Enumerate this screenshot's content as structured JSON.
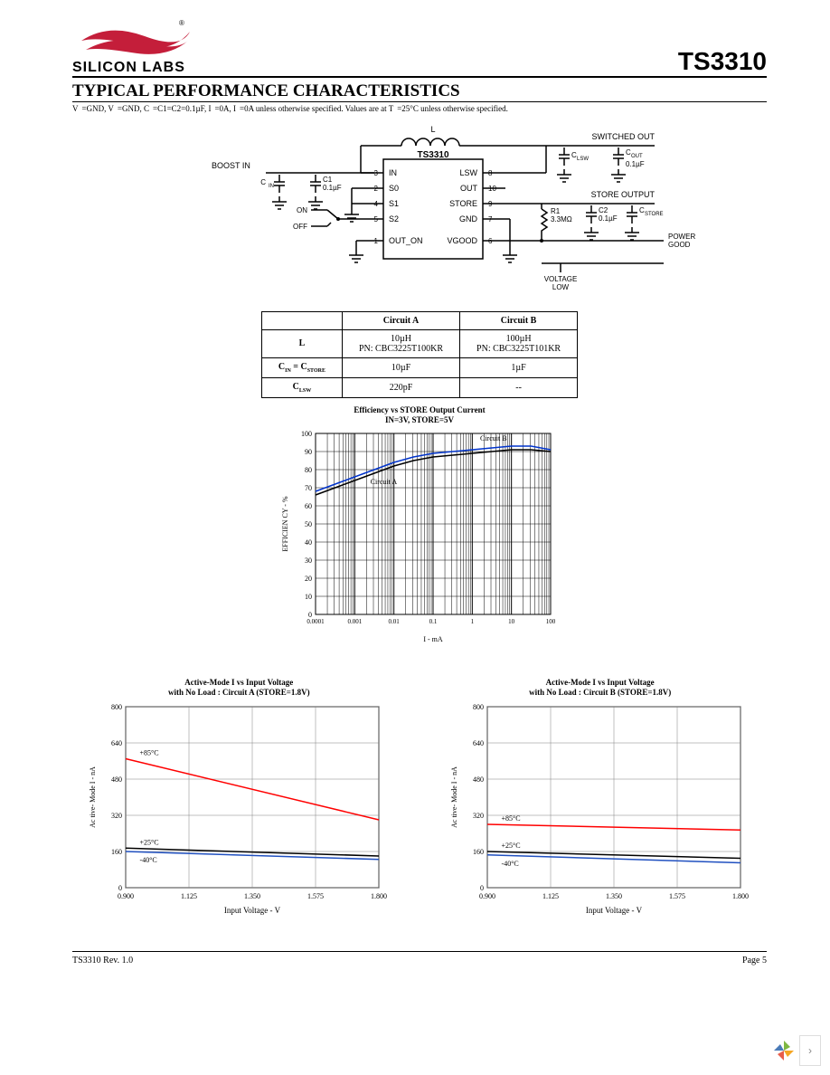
{
  "header": {
    "brand_line1": "SILICON LABS",
    "part_number": "TS3310"
  },
  "section": {
    "title": "TYPICAL PERFORMANCE CHARACTERISTICS",
    "note_a": "V",
    "note_b": " =GND, V",
    "note_c": " =GND, C",
    "note_d": " =C1=C2=0.1µF, I",
    "note_e": " =0A, I",
    "note_f": " =0A unless otherwise specified. Values are at T",
    "note_g": " =25°C unless otherwise specified."
  },
  "circuit": {
    "label_L": "L",
    "label_switched_out": "SWITCHED OUT",
    "label_boost_in": "BOOST IN",
    "label_cin": "C",
    "label_cin_sub": "IN",
    "label_c1": "C1\n0.1µF",
    "label_on": "ON",
    "label_off": "OFF",
    "chip": "TS3310",
    "pins_left": [
      "IN",
      "S0",
      "S1",
      "S2",
      "OUT_ON"
    ],
    "pin_nums_left": [
      "3",
      "2",
      "4",
      "5",
      "1"
    ],
    "pins_right": [
      "LSW",
      "OUT",
      "STORE",
      "GND",
      "VGOOD"
    ],
    "pin_nums_right": [
      "8",
      "10",
      "9",
      "7",
      "6"
    ],
    "label_clsw": "C",
    "label_clsw_sub": "LSW",
    "label_cout": "C",
    "label_cout_sub": "OUT",
    "label_cout_val": "0.1µF",
    "label_store_output": "STORE OUTPUT",
    "label_r1": "R1\n3.3MΩ",
    "label_c2": "C2\n0.1µF",
    "label_cstore": "C",
    "label_cstore_sub": "STORE",
    "label_power_good": "POWER\nGOOD",
    "label_voltage_low": "VOLTAGE\nLOW"
  },
  "comp_table": {
    "cols": [
      "",
      "Circuit A",
      "Circuit B"
    ],
    "rows": [
      [
        "L",
        "10µH\nPN: CBC3225T100KR",
        "100µH\nPN: CBC3225T101KR"
      ],
      [
        "C   = C",
        "10µF",
        "1µF"
      ],
      [
        "C",
        "220pF",
        "--"
      ]
    ],
    "row1_sub1": "IN",
    "row1_sub2": "STORE",
    "row2_sub": "LSW"
  },
  "eff_chart": {
    "title_l1": "Efficiency vs STORE Output Current",
    "title_l2": "IN=3V, STORE=5V",
    "ylabel": "EFFICIEN   CY - %",
    "xlabel": "I        - mA",
    "yticks": [
      0,
      10,
      20,
      30,
      40,
      50,
      60,
      70,
      80,
      90,
      100
    ],
    "ylim": [
      0,
      100
    ],
    "xticks": [
      "0.0001",
      "0.001",
      "0.01",
      "0.1",
      "1",
      "10",
      "100"
    ],
    "labels": {
      "a": "Circuit A",
      "b": "Circuit B"
    },
    "series_a": {
      "color": "#000000",
      "xdec": [
        -4,
        -3.5,
        -3,
        -2.5,
        -2,
        -1.5,
        -1,
        -0.5,
        0,
        0.5,
        1,
        1.5,
        2
      ],
      "y": [
        66,
        70,
        74,
        78,
        82,
        85,
        87,
        88,
        89,
        90,
        91,
        91,
        90
      ]
    },
    "series_b": {
      "color": "#0033cc",
      "xdec": [
        -4,
        -3.5,
        -3,
        -2.5,
        -2,
        -1.5,
        -1,
        -0.5,
        0,
        0.5,
        1,
        1.5,
        2
      ],
      "y": [
        68,
        72,
        76,
        80,
        84,
        87,
        89,
        90,
        91,
        92,
        93,
        93,
        91
      ]
    },
    "grid_color": "#000000",
    "bg": "#ffffff"
  },
  "active_charts": {
    "common": {
      "ylabel": "Ac tive- Mode I     - nA",
      "xlabel": "Input Voltage - V",
      "yticks": [
        0,
        160,
        320,
        480,
        640,
        800
      ],
      "xticks": [
        "0.900",
        "1.125",
        "1.350",
        "1.575",
        "1.800"
      ],
      "xlim": [
        0.9,
        1.8
      ],
      "ylim": [
        0,
        800
      ],
      "grid_color": "#808080",
      "temps": {
        "hi": "+85°C",
        "mid": "+25°C",
        "lo": "-40°C"
      }
    },
    "a": {
      "title_l1": "Active-Mode I       vs Input Voltage",
      "title_l2": "with No Load : Circuit A (STORE=1.8V)",
      "series": [
        {
          "color": "#ff0000",
          "y0": 570,
          "y1": 300,
          "label": "+85°C"
        },
        {
          "color": "#000000",
          "y0": 175,
          "y1": 140,
          "label": "+25°C"
        },
        {
          "color": "#2050c0",
          "y0": 160,
          "y1": 125,
          "label": "-40°C"
        }
      ]
    },
    "b": {
      "title_l1": "Active-Mode I       vs Input Voltage",
      "title_l2": "with No Load : Circuit B (STORE=1.8V)",
      "series": [
        {
          "color": "#ff0000",
          "y0": 280,
          "y1": 255,
          "label": "+85°C"
        },
        {
          "color": "#000000",
          "y0": 160,
          "y1": 130,
          "label": "+25°C"
        },
        {
          "color": "#2050c0",
          "y0": 145,
          "y1": 110,
          "label": "-40°C"
        }
      ]
    }
  },
  "footer": {
    "left": "TS3310 Rev. 1.0",
    "right": "Page 5"
  }
}
